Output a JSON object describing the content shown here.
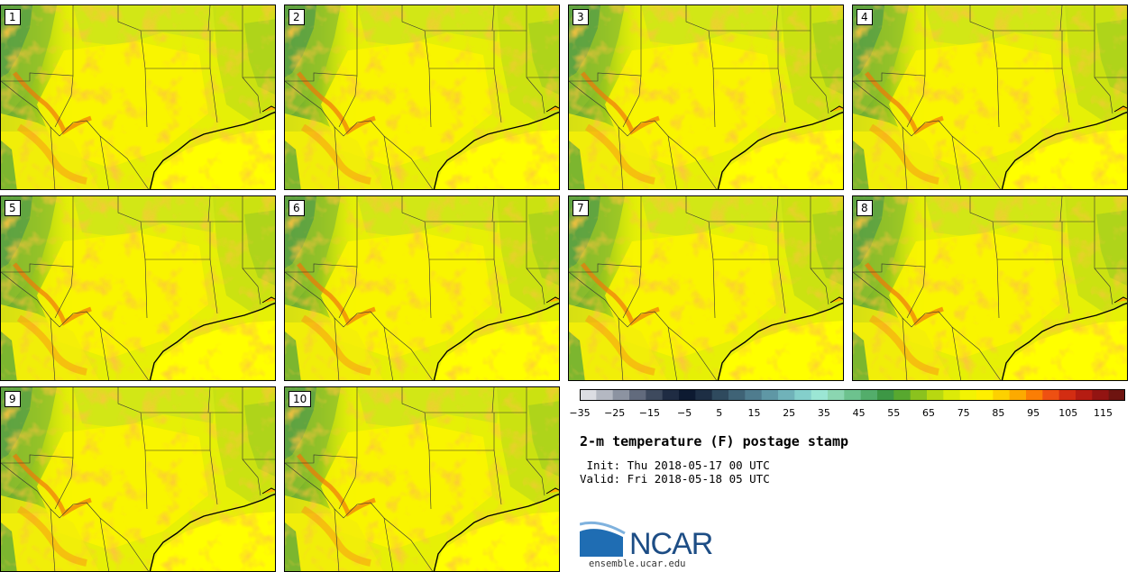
{
  "panels": [
    {
      "label": "1"
    },
    {
      "label": "2"
    },
    {
      "label": "3"
    },
    {
      "label": "4"
    },
    {
      "label": "5"
    },
    {
      "label": "6"
    },
    {
      "label": "7"
    },
    {
      "label": "8"
    },
    {
      "label": "9"
    },
    {
      "label": "10"
    }
  ],
  "colorbar": {
    "colors": [
      "#dcdde3",
      "#b4b8c2",
      "#8c93a1",
      "#626b7d",
      "#3e4a5e",
      "#1f2c43",
      "#0d1a31",
      "#1d2e44",
      "#2f4a5e",
      "#3f6376",
      "#4f7c8e",
      "#5f97a5",
      "#70b2b9",
      "#84cfcb",
      "#9be6d4",
      "#8bd6b1",
      "#6dc28e",
      "#53ad6b",
      "#3d9745",
      "#58a82f",
      "#8bc21e",
      "#b8d811",
      "#dcea09",
      "#f3f303",
      "#ffef00",
      "#fdd100",
      "#fcaa00",
      "#fb7e05",
      "#ee5012",
      "#d32d12",
      "#b51c12",
      "#931412",
      "#6e1410"
    ],
    "tick_labels": [
      "−35",
      "−25",
      "−15",
      "−5",
      "5",
      "15",
      "25",
      "35",
      "45",
      "55",
      "65",
      "75",
      "85",
      "95",
      "105",
      "115"
    ]
  },
  "title": "2-m temperature (F) postage stamp",
  "init_text": " Init: Thu 2018-05-17 00 UTC",
  "valid_text": "Valid: Fri 2018-05-18 05 UTC",
  "logo_text": "NCAR",
  "website": "ensemble.ucar.edu"
}
